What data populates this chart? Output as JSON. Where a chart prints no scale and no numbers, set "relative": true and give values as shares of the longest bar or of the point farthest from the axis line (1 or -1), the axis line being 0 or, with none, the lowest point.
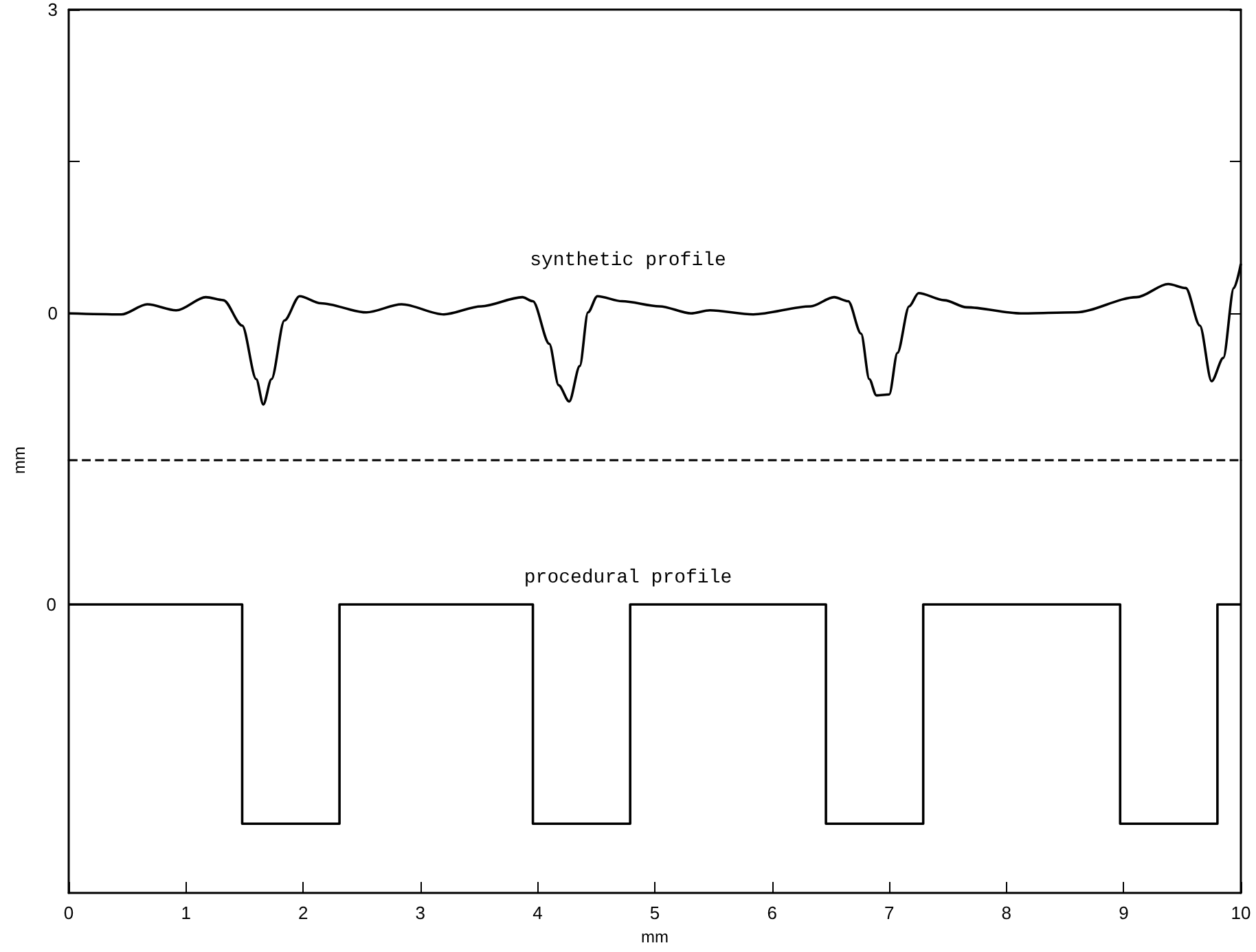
{
  "chart_data": [
    {
      "type": "line",
      "ylabel": "mm",
      "xlim": [
        0,
        10
      ],
      "xticks": [
        0,
        1,
        2,
        3,
        4,
        5,
        6,
        7,
        8,
        9,
        10
      ],
      "tick_labels": "y",
      "ylim": [
        -1.45,
        3
      ],
      "yticks": [
        3,
        {
          "value": 1.5,
          "label": null
        },
        0
      ],
      "grid": false,
      "marker": "none",
      "series": [
        {
          "color": "#000000",
          "line_style": "solid",
          "x": [
            0,
            0.45,
            0.67,
            0.92,
            1.17,
            1.32,
            1.48,
            1.6,
            1.66,
            1.73,
            1.84,
            1.97,
            2.15,
            2.54,
            2.84,
            3.2,
            3.52,
            3.87,
            3.96,
            4.1,
            4.18,
            4.27,
            4.36,
            4.43,
            4.51,
            4.72,
            5.04,
            5.31,
            5.47,
            5.84,
            6.33,
            6.53,
            6.65,
            6.76,
            6.83,
            6.89,
            7.0,
            7.07,
            7.17,
            7.25,
            7.47,
            7.66,
            8.12,
            8.59,
            9.11,
            9.38,
            9.53,
            9.65,
            9.75,
            9.85,
            9.94,
            10
          ],
          "values": [
            0,
            -0.01,
            0.09,
            0.03,
            0.16,
            0.13,
            -0.12,
            -0.65,
            -0.9,
            -0.65,
            -0.07,
            0.17,
            0.1,
            0.01,
            0.09,
            -0.01,
            0.07,
            0.16,
            0.12,
            -0.3,
            -0.71,
            -0.87,
            -0.52,
            0.01,
            0.17,
            0.12,
            0.07,
            0,
            0.03,
            -0.01,
            0.07,
            0.16,
            0.12,
            -0.2,
            -0.65,
            -0.81,
            -0.8,
            -0.39,
            0.07,
            0.2,
            0.13,
            0.06,
            0,
            0.01,
            0.16,
            0.29,
            0.25,
            -0.12,
            -0.67,
            -0.44,
            0.25,
            0.49
          ]
        }
      ],
      "ref_lines": [
        {
          "axis": "y",
          "value": -1.45,
          "label": null,
          "line_style": "dashed",
          "color": "#000000"
        }
      ],
      "annotations": [
        "synthetic profile"
      ]
    },
    {
      "type": "line",
      "xlabel": "mm",
      "xlim": [
        0,
        10
      ],
      "xticks": [
        0,
        1,
        2,
        3,
        4,
        5,
        6,
        7,
        8,
        9,
        10
      ],
      "relative": true,
      "grid": false,
      "marker": "none",
      "series": [
        {
          "color": "#000000",
          "line_style": "solid",
          "x": [
            0,
            1.48,
            1.48,
            2.31,
            2.31,
            3.96,
            3.96,
            4.79,
            4.79,
            6.46,
            6.46,
            7.29,
            7.29,
            8.97,
            8.97,
            9.8,
            9.8,
            10
          ],
          "values": [
            1,
            1,
            0.24,
            0.24,
            1,
            1,
            0.24,
            0.24,
            1,
            1,
            0.24,
            0.24,
            1,
            1,
            0.24,
            0.24,
            1,
            1
          ]
        }
      ],
      "annotations": [
        "procedural profile",
        {
          "text": "0",
          "x": 0,
          "y": 1
        }
      ]
    }
  ]
}
